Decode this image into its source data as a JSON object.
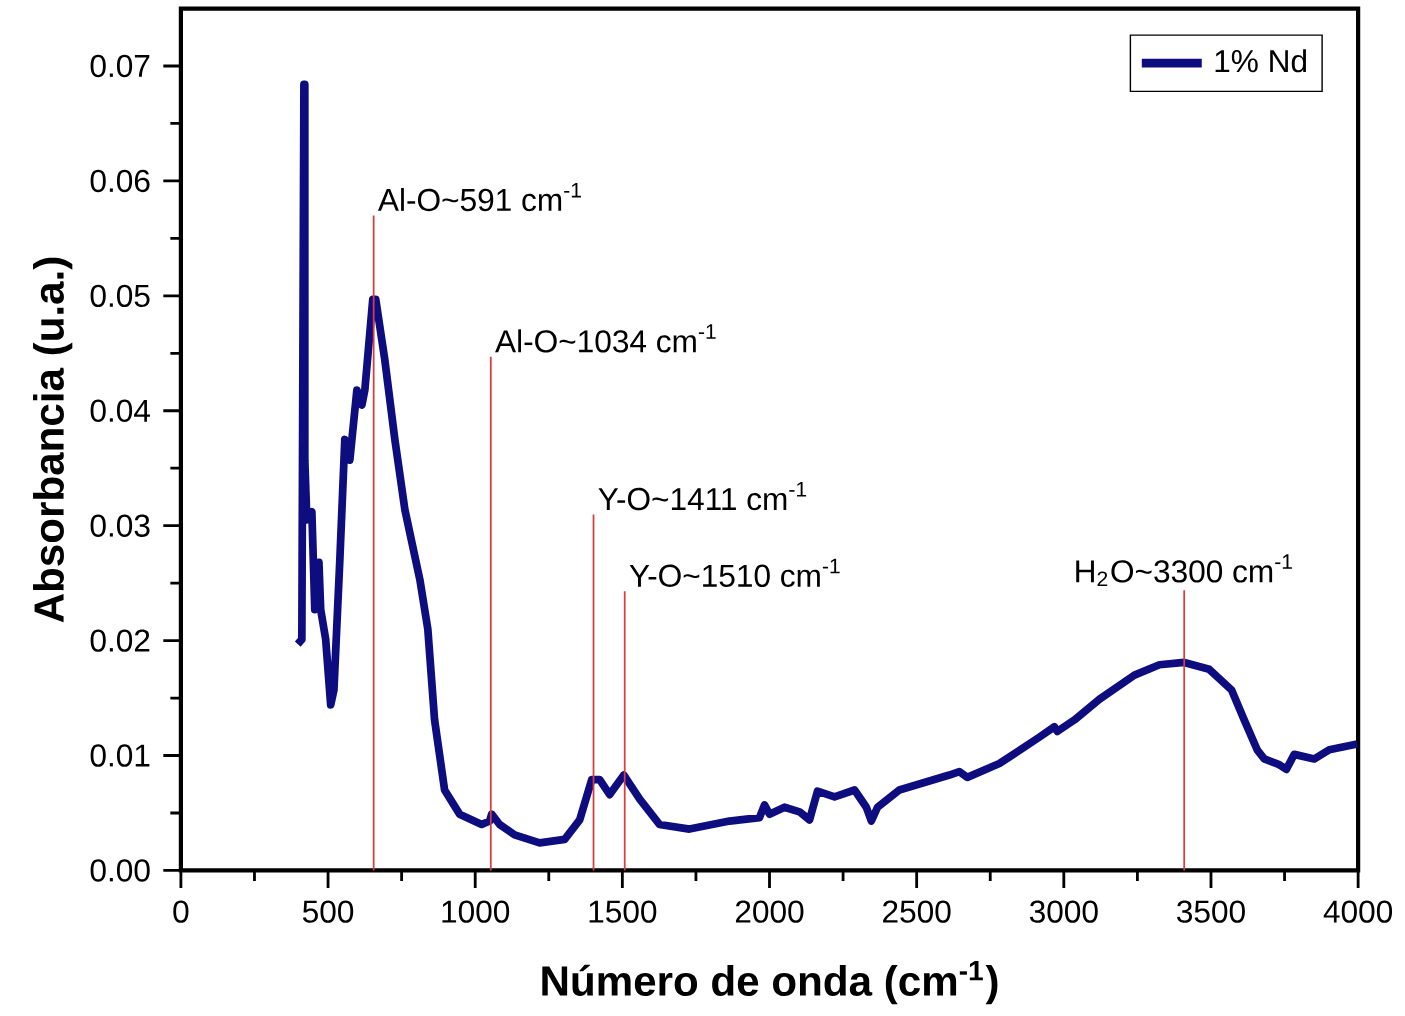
{
  "chart_data": {
    "type": "line",
    "xlabel": "**Número de onda (cm$^{-1}$)**",
    "ylabel": "**Absorbancia (u.a.)**",
    "xlim": [
      0,
      4000
    ],
    "xticks": [
      0,
      500,
      1000,
      1500,
      2000,
      2500,
      3000,
      3500,
      4000
    ],
    "ylim": [
      0,
      0.075
    ],
    "yticks": [
      {
        "value": 0,
        "label": "0.00"
      },
      {
        "value": 0.01,
        "label": "0.01"
      },
      {
        "value": 0.02,
        "label": "0.02"
      },
      {
        "value": 0.03,
        "label": "0.03"
      },
      {
        "value": 0.04,
        "label": "0.04"
      },
      {
        "value": 0.05,
        "label": "0.05"
      },
      {
        "value": 0.06,
        "label": "0.06"
      },
      {
        "value": 0.07,
        "label": "0.07"
      }
    ],
    "legend": "top right",
    "grid": false,
    "marker": "none",
    "line_style": "solid",
    "ref_lines": [
      {
        "axis": "x",
        "value": 655,
        "label": "Al-O~591 cm$^{-1}$",
        "color": "#dc3c3c"
      },
      {
        "axis": "x",
        "value": 1053,
        "label": "Al-O~1034 cm$^{-1}$",
        "color": "#dc3c3c"
      },
      {
        "axis": "x",
        "value": 1402,
        "label": "Y-O~1411 cm$^{-1}$",
        "color": "#dc3c3c"
      },
      {
        "axis": "x",
        "value": 1508,
        "label": "Y-O~1510 cm$^{-1}$",
        "color": "#dc3c3c"
      },
      {
        "axis": "x",
        "value": 3409,
        "label": "H$_{2}$O~3300 cm$^{-1}$",
        "color": "#dc3c3c"
      }
    ],
    "series": [
      {
        "name": "1% Nd",
        "color": "#0d0d80",
        "x": [
          397,
          411,
          418,
          421,
          421,
          428,
          445,
          455,
          469,
          475,
          492,
          509,
          520,
          540,
          557,
          574,
          598,
          615,
          625,
          652,
          662,
          693,
          727,
          761,
          812,
          839,
          862,
          896,
          947,
          1022,
          1049,
          1056,
          1083,
          1134,
          1219,
          1304,
          1355,
          1396,
          1423,
          1457,
          1505,
          1559,
          1626,
          1728,
          1864,
          1966,
          1983,
          2000,
          2051,
          2102,
          2136,
          2163,
          2221,
          2289,
          2329,
          2346,
          2367,
          2441,
          2611,
          2645,
          2672,
          2781,
          2917,
          2968,
          2978,
          3036,
          3121,
          3240,
          3325,
          3409,
          3494,
          3570,
          3613,
          3657,
          3681,
          3732,
          3756,
          3783,
          3851,
          3902,
          3997
        ],
        "values": [
          0.0197,
          0.0201,
          0.0684,
          0.0684,
          0.0357,
          0.0305,
          0.0312,
          0.0227,
          0.0268,
          0.0227,
          0.0201,
          0.0144,
          0.0157,
          0.027,
          0.0375,
          0.0357,
          0.0418,
          0.0405,
          0.0418,
          0.0497,
          0.0497,
          0.0444,
          0.0375,
          0.0314,
          0.0253,
          0.021,
          0.0131,
          0.007,
          0.0049,
          0.004,
          0.0043,
          0.0049,
          0.004,
          0.0031,
          0.0024,
          0.0027,
          0.0044,
          0.0079,
          0.0079,
          0.0066,
          0.0083,
          0.0062,
          0.004,
          0.0036,
          0.0043,
          0.0046,
          0.0057,
          0.0049,
          0.0055,
          0.0051,
          0.0044,
          0.0069,
          0.0064,
          0.007,
          0.0055,
          0.0043,
          0.0055,
          0.007,
          0.0083,
          0.0086,
          0.0081,
          0.0093,
          0.0116,
          0.0125,
          0.0121,
          0.0131,
          0.0149,
          0.017,
          0.0179,
          0.0181,
          0.0175,
          0.0157,
          0.0131,
          0.0105,
          0.0097,
          0.0092,
          0.0088,
          0.0101,
          0.0097,
          0.0105,
          0.011
        ]
      }
    ]
  }
}
